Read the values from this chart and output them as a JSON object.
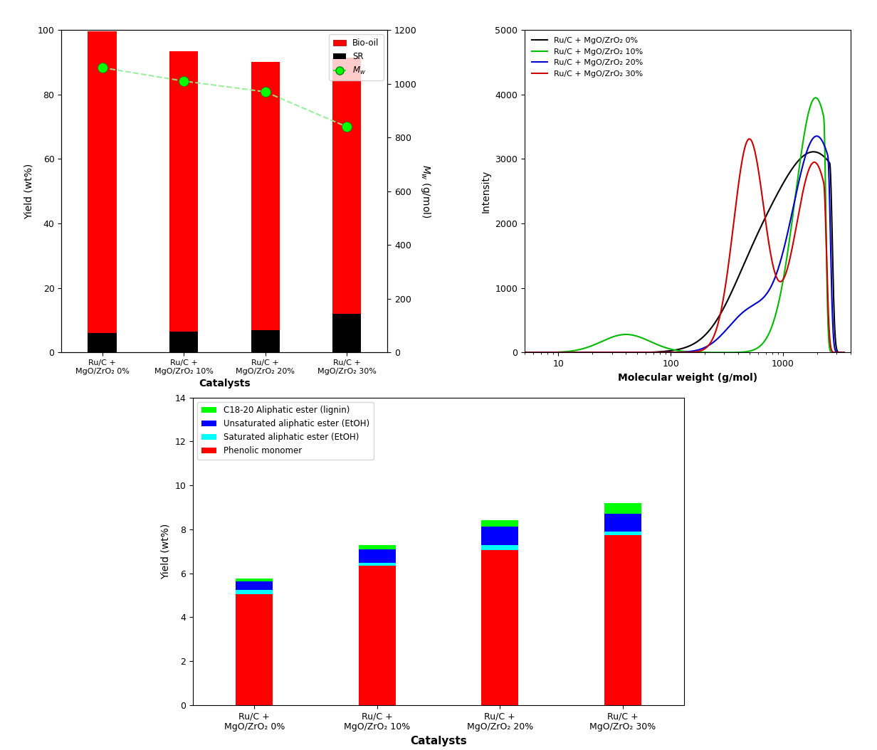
{
  "catalysts": [
    "Ru/C +\nMgO/ZrO₂ 0%",
    "Ru/C +\nMgO/ZrO₂ 10%",
    "Ru/C +\nMgO/ZrO₂ 20%",
    "Ru/C +\nMgO/ZrO₂ 30%"
  ],
  "bar1_biooil": [
    93.5,
    87.0,
    83.0,
    79.5
  ],
  "bar1_sr": [
    6.0,
    6.5,
    7.0,
    12.0
  ],
  "bar1_mw": [
    1060,
    1010,
    970,
    840
  ],
  "bar1_ylim": [
    0,
    100
  ],
  "bar1_mw_ylim": [
    0,
    1200
  ],
  "bar2_phenolic": [
    5.05,
    6.35,
    7.05,
    7.75
  ],
  "bar2_saturated": [
    0.18,
    0.12,
    0.22,
    0.15
  ],
  "bar2_unsaturated": [
    0.4,
    0.62,
    0.85,
    0.8
  ],
  "bar2_c1820": [
    0.12,
    0.18,
    0.28,
    0.5
  ],
  "bar2_ylim": [
    0,
    14
  ],
  "gpc_colors": [
    "#000000",
    "#00bb00",
    "#0000cc",
    "#cc0000"
  ],
  "gpc_labels": [
    "Ru/C + MgO/ZrO₂ 0%",
    "Ru/C + MgO/ZrO₂ 10%",
    "Ru/C + MgO/ZrO₂ 20%",
    "Ru/C + MgO/ZrO₂ 30%"
  ],
  "fig_bg": "#ffffff"
}
